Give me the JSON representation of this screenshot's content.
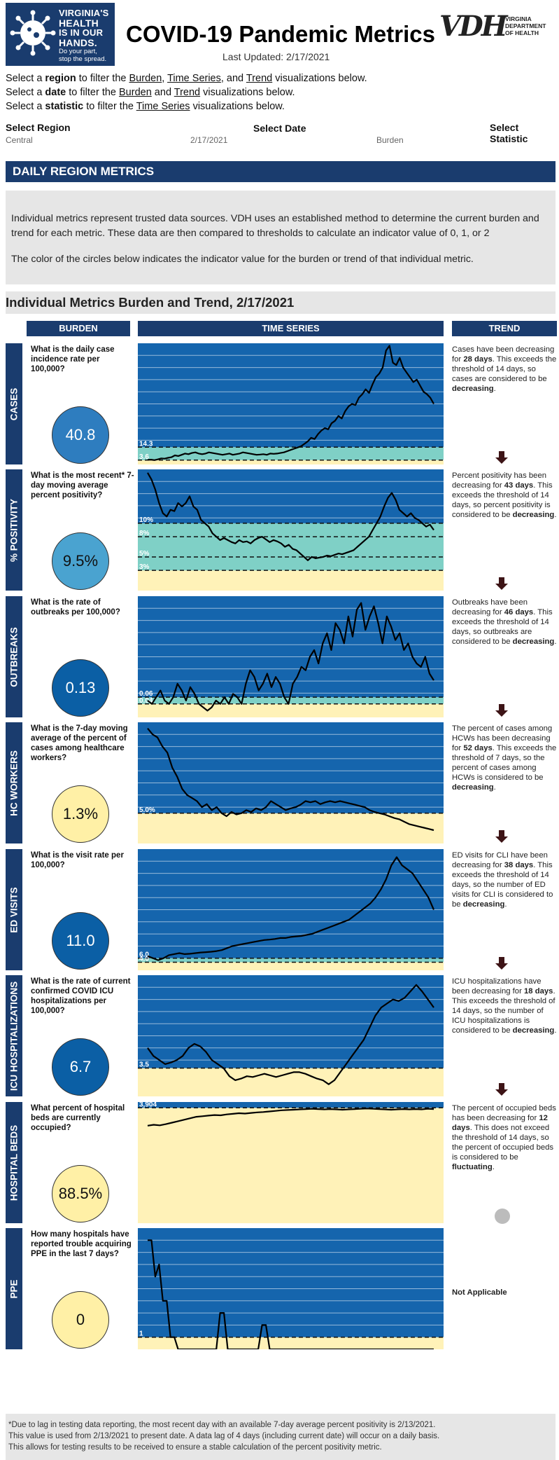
{
  "header": {
    "logo_lines": [
      "VIRGINIA'S",
      "HEALTH",
      "IS IN OUR",
      "HANDS."
    ],
    "logo_sub": [
      "Do your part,",
      "stop the spread."
    ],
    "title": "COVID-19 Pandemic Metrics",
    "last_updated": "Last Updated: 2/17/2021",
    "vdh_big": "VDH",
    "vdh_small": [
      "VIRGINIA",
      "DEPARTMENT",
      "OF HEALTH"
    ]
  },
  "instructions": [
    {
      "pre": "Select a ",
      "b": "region",
      "mid": " to filter the ",
      "links": [
        "Burden",
        "Time Series"
      ],
      "post1": ", and ",
      "link3": "Trend",
      "post": " visualizations below."
    },
    {
      "pre": "Select a ",
      "b": "date",
      "mid": " to filter the ",
      "links": [
        "Burden"
      ],
      "post1": " and ",
      "link3": "Trend",
      "post": " visualizations below."
    },
    {
      "pre": "Select a ",
      "b": "statistic",
      "mid": " to filter the ",
      "links": [],
      "post1": "",
      "link3": "Time Series",
      "post": " visualizations below."
    }
  ],
  "filters": {
    "region": {
      "label": "Select Region",
      "value": "Central"
    },
    "date": {
      "label": "Select Date",
      "value": "2/17/2021"
    },
    "statistic": {
      "label": "Select Statistic",
      "value": "Burden"
    }
  },
  "banner": "DAILY REGION METRICS",
  "info": [
    "Individual metrics represent trusted data sources. VDH uses an established method to determine the current burden and trend for each metric. These data are then compared to thresholds to calculate an indicator value of 0, 1, or 2",
    "The color of the circles below indicates the indicator value for the burden or trend of that individual metric."
  ],
  "section_title": "Individual Metrics Burden and Trend, 2/17/2021",
  "columns": {
    "burden": "BURDEN",
    "time_series": "TIME SERIES",
    "trend": "TREND"
  },
  "colors": {
    "navy": "#1a3c6e",
    "plot_blue": "#1565ad",
    "teal": "#7fd0c6",
    "cream": "#fff2b8",
    "circle_light": "#4aa3d0",
    "circle_mid": "#2e7dbf",
    "circle_dark": "#0b5fa5",
    "circle_yellow": "#fff0a6",
    "arrow": "#3d1416"
  },
  "metrics": [
    {
      "id": "cases",
      "label": "CASES",
      "question": "What is the daily case incidence rate per 100,000?",
      "value": "40.8",
      "circle_color": "#2e7dbf",
      "text_color": "#fff",
      "trend_html": [
        " Cases have been decreasing for ",
        "28 days",
        ". This exceeds the threshold of 14 days, so cases are considered to be ",
        "decreasing",
        "."
      ],
      "trend_icon": "down-arrow"
    },
    {
      "id": "positivity",
      "label": "% POSITIVITY",
      "question": "What is the most recent* 7-day moving average percent positivity?",
      "value": "9.5%",
      "circle_color": "#4aa3d0",
      "text_color": "#111",
      "trend_html": [
        " Percent positivity has been decreasing for ",
        "43 days",
        ". This exceeds the threshold of 14 days, so percent positivity is considered to be ",
        "decreasing",
        "."
      ],
      "trend_icon": "down-arrow"
    },
    {
      "id": "outbreaks",
      "label": "OUTBREAKS",
      "question": "What is the rate of outbreaks per 100,000?",
      "value": "0.13",
      "circle_color": "#0b5fa5",
      "text_color": "#fff",
      "trend_html": [
        "Outbreaks have been decreasing for ",
        "46 days",
        ". This exceeds the threshold of 14 days, so outbreaks are considered to be ",
        "decreasing",
        "."
      ],
      "trend_icon": "down-arrow"
    },
    {
      "id": "hcw",
      "label": "HC WORKERS",
      "question": "What is the 7-day moving average of the percent of cases among healthcare workers?",
      "value": "1.3%",
      "circle_color": "#fff0a6",
      "text_color": "#111",
      "trend_html": [
        "The percent of cases among HCWs has been decreasing for ",
        "52 days",
        ". This exceeds the threshold of 7 days, so the percent of cases among HCWs is considered to be ",
        "decreasing",
        "."
      ],
      "trend_icon": "down-arrow"
    },
    {
      "id": "ed",
      "label": "ED VISITS",
      "question": "What is the visit rate per 100,000?",
      "value": "11.0",
      "circle_color": "#0b5fa5",
      "text_color": "#fff",
      "trend_html": [
        "ED visits for CLI have been decreasing for ",
        "38 days",
        ". This exceeds the threshold of 14 days, so the number of ED visits for CLI is considered to be ",
        "decreasing",
        "."
      ],
      "trend_icon": "down-arrow"
    },
    {
      "id": "icu",
      "label": "ICU HOSPITALIZATIONS",
      "question": "What is the rate of current confirmed COVID ICU hospitalizations per 100,000?",
      "value": "6.7",
      "circle_color": "#0b5fa5",
      "text_color": "#fff",
      "trend_html": [
        "ICU hospitalizations have been decreasing for ",
        "18 days",
        ". This exceeds the threshold of 14 days, so the number of ICU hospitalizations is considered to be ",
        "decreasing",
        "."
      ],
      "trend_icon": "down-arrow"
    },
    {
      "id": "beds",
      "label": "HOSPITAL BEDS",
      "question": "What percent of hospital beds are currently occupied?",
      "value": "88.5%",
      "circle_color": "#fff0a6",
      "text_color": "#111",
      "trend_html": [
        "The percent of occupied beds has been decreasing for ",
        "12 days",
        ". This does not exceed the threshold of 14 days, so the percent of occupied beds is considered to be ",
        "fluctuating",
        "."
      ],
      "trend_icon": "gray-dot"
    },
    {
      "id": "ppe",
      "label": "PPE",
      "question": "How many hospitals have reported trouble acquiring PPE in the last 7 days?",
      "value": "0",
      "circle_color": "#fff0a6",
      "text_color": "#111",
      "trend_html": [
        "",
        "Not Applicable",
        "",
        "",
        ""
      ],
      "trend_icon": "none"
    }
  ],
  "chart_data": [
    {
      "type": "line",
      "id": "cases",
      "title": "",
      "xlabel": "",
      "ylabel": "",
      "ylim": [
        0,
        100
      ],
      "bands": [
        {
          "from": 0,
          "to": 3.6,
          "color": "#fff2b8"
        },
        {
          "from": 3.6,
          "to": 14.3,
          "color": "#7fd0c6"
        },
        {
          "from": 14.3,
          "to": 100,
          "color": "#1565ad"
        }
      ],
      "thresholds": [
        {
          "value": 14.3,
          "label": "14.3"
        },
        {
          "value": 3.6,
          "label": "3.6"
        }
      ],
      "values": [
        3.8,
        4,
        3.6,
        4.2,
        5,
        4.8,
        5.5,
        6,
        7.5,
        7,
        8,
        9,
        8.5,
        9.5,
        10,
        9,
        8.5,
        9,
        10,
        9.5,
        9,
        8.5,
        8,
        8.5,
        9,
        8,
        8.5,
        9,
        10,
        9.5,
        9,
        8.5,
        8,
        8.2,
        8.5,
        8,
        9,
        8.8,
        9,
        9.5,
        10,
        11,
        12,
        13,
        14,
        15,
        17,
        19,
        22,
        21,
        25,
        28,
        30,
        29,
        34,
        36,
        40,
        38,
        44,
        48,
        50,
        49,
        55,
        58,
        62,
        59,
        66,
        72,
        75,
        80,
        94,
        98,
        84,
        82,
        88,
        80,
        76,
        72,
        68,
        70,
        65,
        60,
        58,
        55,
        50
      ]
    },
    {
      "type": "line",
      "id": "positivity",
      "title": "",
      "xlabel": "",
      "ylabel": "",
      "ylim": [
        0,
        18
      ],
      "bands": [
        {
          "from": 0,
          "to": 3,
          "color": "#fff2b8"
        },
        {
          "from": 3,
          "to": 10,
          "color": "#7fd0c6"
        },
        {
          "from": 10,
          "to": 18,
          "color": "#1565ad"
        }
      ],
      "thresholds": [
        {
          "value": 10,
          "label": "10%"
        },
        {
          "value": 8,
          "label": "8%"
        },
        {
          "value": 5,
          "label": "5%"
        },
        {
          "value": 3,
          "label": "3%"
        }
      ],
      "values": [
        17.5,
        16.5,
        15,
        13,
        11.5,
        11,
        12,
        11.8,
        13,
        12.5,
        13,
        14,
        12.5,
        12,
        10.5,
        10,
        9.5,
        8.5,
        8,
        7.5,
        7.8,
        7.5,
        7.2,
        7,
        7.5,
        7.2,
        7.3,
        7,
        7.5,
        7.8,
        8,
        7.6,
        7.2,
        7.5,
        7.3,
        7,
        6.5,
        6.8,
        6.2,
        6,
        5.5,
        5,
        4.5,
        5,
        4.8,
        4.9,
        5,
        5.2,
        5.1,
        5.3,
        5.5,
        5.4,
        5.6,
        5.8,
        6,
        6.5,
        7,
        7.5,
        8,
        9,
        10,
        11,
        12.5,
        13.8,
        14.5,
        13.5,
        12,
        11.5,
        11,
        11.5,
        10.8,
        10.5,
        10,
        9.5,
        9.8,
        9
      ]
    },
    {
      "type": "line",
      "id": "outbreaks",
      "title": "",
      "xlabel": "",
      "ylabel": "",
      "ylim": [
        0,
        0.36
      ],
      "bands": [
        {
          "from": 0,
          "to": 0.04,
          "color": "#fff2b8"
        },
        {
          "from": 0.04,
          "to": 0.06,
          "color": "#7fd0c6"
        },
        {
          "from": 0.06,
          "to": 0.36,
          "color": "#1565ad"
        }
      ],
      "thresholds": [
        {
          "value": 0.06,
          "label": "0.06"
        },
        {
          "value": 0.04,
          "label": "0.04"
        }
      ],
      "values": [
        0.05,
        0.04,
        0.06,
        0.08,
        0.05,
        0.04,
        0.06,
        0.1,
        0.08,
        0.05,
        0.09,
        0.07,
        0.04,
        0.03,
        0.02,
        0.03,
        0.05,
        0.04,
        0.06,
        0.04,
        0.07,
        0.06,
        0.04,
        0.1,
        0.14,
        0.12,
        0.08,
        0.1,
        0.13,
        0.09,
        0.12,
        0.1,
        0.06,
        0.04,
        0.1,
        0.12,
        0.15,
        0.14,
        0.18,
        0.2,
        0.16,
        0.22,
        0.25,
        0.2,
        0.28,
        0.26,
        0.22,
        0.3,
        0.24,
        0.32,
        0.34,
        0.26,
        0.3,
        0.33,
        0.28,
        0.22,
        0.3,
        0.27,
        0.23,
        0.25,
        0.2,
        0.22,
        0.18,
        0.16,
        0.15,
        0.18,
        0.13,
        0.11
      ]
    },
    {
      "type": "line",
      "id": "hcw",
      "title": "",
      "xlabel": "",
      "ylabel": "",
      "ylim": [
        0,
        20
      ],
      "bands": [
        {
          "from": 0,
          "to": 5,
          "color": "#fff2b8"
        },
        {
          "from": 5,
          "to": 20,
          "color": "#1565ad"
        }
      ],
      "thresholds": [
        {
          "value": 5.0,
          "label": "5.0%"
        }
      ],
      "values": [
        19,
        18,
        17.5,
        16,
        15,
        12.5,
        11,
        9,
        8,
        7.5,
        7,
        6,
        6.5,
        5.5,
        6,
        5,
        4.5,
        5.2,
        4.8,
        5,
        5.5,
        5.2,
        5.8,
        5.5,
        6,
        7,
        6.5,
        6,
        5.5,
        5.8,
        6,
        6.4,
        7,
        6.8,
        7,
        6.5,
        6.8,
        7,
        6.8,
        7,
        6.8,
        6.6,
        6.4,
        6.2,
        6,
        5.5,
        5.2,
        5,
        4.8,
        4.5,
        4.2,
        4,
        3.6,
        3.2,
        3,
        2.8,
        2.6,
        2.4,
        2.2
      ]
    },
    {
      "type": "line",
      "id": "ed",
      "title": "",
      "xlabel": "",
      "ylabel": "",
      "ylim": [
        0,
        60
      ],
      "bands": [
        {
          "from": 0,
          "to": 4,
          "color": "#fff2b8"
        },
        {
          "from": 4,
          "to": 6,
          "color": "#7fd0c6"
        },
        {
          "from": 6,
          "to": 60,
          "color": "#1565ad"
        }
      ],
      "thresholds": [
        {
          "value": 6.0,
          "label": "6.0"
        },
        {
          "value": 4.0,
          "label": "4.0"
        }
      ],
      "values": [
        7,
        6,
        5,
        6,
        7.5,
        8,
        8.5,
        8,
        8.2,
        8.5,
        8.8,
        9,
        9.2,
        9.5,
        10,
        11,
        12,
        12.5,
        13,
        13.5,
        14,
        14.5,
        15,
        15.2,
        15.5,
        16,
        16,
        16.5,
        16.8,
        17,
        17.5,
        18,
        19,
        20,
        21,
        22,
        23,
        24,
        25,
        27,
        29,
        31,
        33,
        36,
        40,
        45,
        52,
        56,
        52,
        50,
        48,
        44,
        40,
        36,
        30
      ]
    },
    {
      "type": "line",
      "id": "icu",
      "title": "",
      "xlabel": "",
      "ylabel": "",
      "ylim": [
        0,
        15
      ],
      "bands": [
        {
          "from": 0,
          "to": 3.5,
          "color": "#fff2b8"
        },
        {
          "from": 3.5,
          "to": 15,
          "color": "#1565ad"
        }
      ],
      "thresholds": [
        {
          "value": 3.5,
          "label": "3.5"
        }
      ],
      "values": [
        6,
        5,
        4.5,
        4,
        4.2,
        4.5,
        5,
        6,
        6.5,
        6.2,
        5.5,
        4.5,
        4,
        3.5,
        2.5,
        2,
        2.2,
        2.5,
        2.4,
        2.6,
        2.8,
        2.6,
        2.4,
        2.6,
        2.8,
        3,
        3,
        2.8,
        2.5,
        2.2,
        2,
        1.5,
        2,
        3,
        4,
        5,
        6,
        7,
        8.5,
        10,
        11,
        11.5,
        12,
        11.8,
        12.2,
        13,
        13.8,
        13,
        12,
        11
      ]
    },
    {
      "type": "line",
      "id": "beds",
      "title": "",
      "xlabel": "",
      "ylabel": "",
      "ylim": [
        0,
        4100
      ],
      "bands": [
        {
          "from": 0,
          "to": 3904,
          "color": "#fff2b8"
        },
        {
          "from": 3904,
          "to": 4100,
          "color": "#1565ad"
        }
      ],
      "thresholds": [
        {
          "value": 3904,
          "label": "3,904"
        }
      ],
      "values": [
        3300,
        3330,
        3310,
        3350,
        3400,
        3450,
        3500,
        3550,
        3600,
        3620,
        3640,
        3660,
        3650,
        3680,
        3700,
        3720,
        3710,
        3730,
        3750,
        3760,
        3780,
        3800,
        3820,
        3830,
        3840,
        3850,
        3860,
        3870,
        3860,
        3850,
        3860,
        3850,
        3840,
        3850,
        3860,
        3870,
        3880,
        3870,
        3860,
        3850,
        3840,
        3850,
        3860,
        3850,
        3860,
        3850,
        3870,
        3860
      ]
    },
    {
      "type": "line",
      "id": "ppe",
      "title": "",
      "xlabel": "",
      "ylabel": "",
      "ylim": [
        0,
        10
      ],
      "bands": [
        {
          "from": 0,
          "to": 1,
          "color": "#fff2b8"
        },
        {
          "from": 1,
          "to": 10,
          "color": "#1565ad"
        }
      ],
      "thresholds": [
        {
          "value": 1,
          "label": "1"
        }
      ],
      "values": [
        9,
        9,
        6,
        7,
        4,
        4,
        1,
        1,
        0,
        0,
        0,
        0,
        0,
        0,
        0,
        0,
        0,
        0,
        0,
        3,
        3,
        0,
        0,
        0,
        0,
        0,
        0,
        0,
        0,
        0,
        2,
        2,
        0,
        0,
        0,
        0,
        0,
        0,
        0,
        0,
        0,
        0,
        0,
        0,
        0,
        0,
        0,
        0,
        0,
        0,
        0,
        0,
        0,
        0,
        0,
        0,
        0,
        0,
        0,
        0,
        0,
        0,
        0,
        0,
        0,
        0,
        0,
        0,
        0,
        0,
        0,
        0,
        0,
        0,
        0,
        0
      ]
    }
  ],
  "footnote": [
    "*Due to lag in testing data reporting, the most recent day with an available 7-day average percent positivity is 2/13/2021.",
    "This value is used from 2/13/2021 to present date. A data lag of 4 days (including current date) will occur on a daily basis.",
    "This allows for testing results to be received to ensure a stable calculation of the percent positivity metric."
  ]
}
